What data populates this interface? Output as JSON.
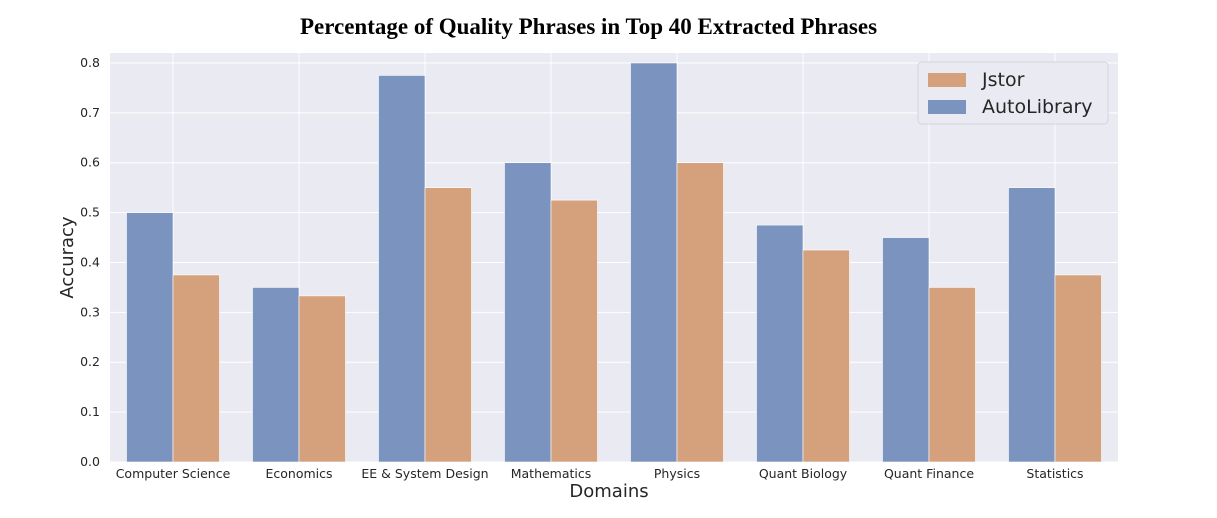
{
  "chart_data": {
    "type": "bar",
    "title": "Percentage of Quality Phrases in Top 40 Extracted Phrases",
    "xlabel": "Domains",
    "ylabel": "Accuracy",
    "ylim": [
      0,
      0.82
    ],
    "yticks": [
      "0.0",
      "0.1",
      "0.2",
      "0.3",
      "0.4",
      "0.5",
      "0.6",
      "0.7",
      "0.8"
    ],
    "grid": true,
    "legend_position": "top-right",
    "categories": [
      "Computer Science",
      "Economics",
      "EE & System Design",
      "Mathematics",
      "Physics",
      "Quant Biology",
      "Quant Finance",
      "Statistics"
    ],
    "series": [
      {
        "name": "AutoLibrary",
        "color": "#7b93bf",
        "values": [
          0.5,
          0.35,
          0.775,
          0.6,
          0.8,
          0.475,
          0.45,
          0.55
        ]
      },
      {
        "name": "Jstor",
        "color": "#d5a07c",
        "values": [
          0.375,
          0.333,
          0.55,
          0.525,
          0.6,
          0.425,
          0.35,
          0.375
        ]
      }
    ],
    "legend_order": [
      "Jstor",
      "AutoLibrary"
    ]
  }
}
